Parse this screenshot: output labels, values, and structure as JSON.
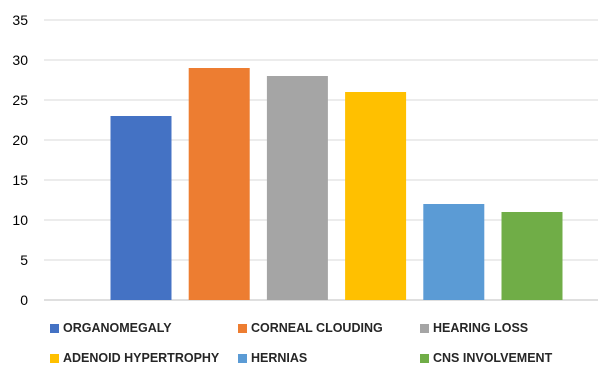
{
  "chart_data": {
    "type": "bar",
    "categories": [
      "ORGANOMEGALY",
      "CORNEAL CLOUDING",
      "HEARING LOSS",
      "ADENOID HYPERTROPHY",
      "HERNIAS",
      "CNS INVOLVEMENT"
    ],
    "values": [
      23,
      29,
      28,
      26,
      12,
      11
    ],
    "colors": [
      "#4472c4",
      "#ed7d31",
      "#a5a5a5",
      "#ffc000",
      "#5b9bd5",
      "#70ad47"
    ],
    "ylim": [
      0,
      35
    ],
    "yticks": [
      "0",
      "5",
      "10",
      "15",
      "20",
      "25",
      "30",
      "35"
    ],
    "grid": true,
    "legend_position": "bottom",
    "title": "",
    "xlabel": "",
    "ylabel": ""
  }
}
